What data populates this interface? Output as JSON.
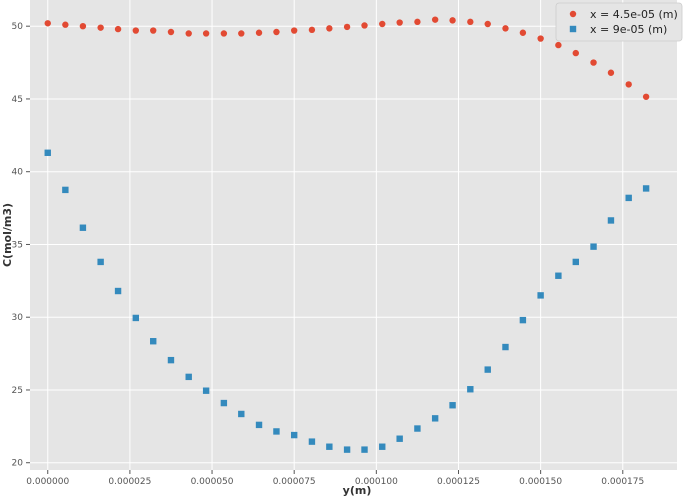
{
  "chart_data": {
    "type": "scatter",
    "title": "",
    "xlabel": "y(m)",
    "ylabel": "C(mol/m3)",
    "xlim": [
      -5.4e-06,
      0.0001915
    ],
    "ylim": [
      19.5,
      51.8
    ],
    "grid": true,
    "legend_position": "top-right",
    "x_ticks": [
      0,
      2.5e-05,
      5e-05,
      7.5e-05,
      0.0001,
      0.000125,
      0.00015,
      0.000175
    ],
    "x_tick_labels": [
      "0.000000",
      "0.000025",
      "0.000050",
      "0.000075",
      "0.000100",
      "0.000125",
      "0.000150",
      "0.000175"
    ],
    "y_ticks": [
      20,
      25,
      30,
      35,
      40,
      45,
      50
    ],
    "y_tick_labels": [
      "20",
      "25",
      "30",
      "35",
      "40",
      "45",
      "50"
    ],
    "x": [
      0,
      5.36e-06,
      1.07e-05,
      1.61e-05,
      2.14e-05,
      2.68e-05,
      3.21e-05,
      3.75e-05,
      4.29e-05,
      4.82e-05,
      5.36e-05,
      5.89e-05,
      6.43e-05,
      6.96e-05,
      7.5e-05,
      8.04e-05,
      8.57e-05,
      9.11e-05,
      9.64e-05,
      0.0001018,
      0.0001071,
      0.0001125,
      0.0001179,
      0.0001232,
      0.0001286,
      0.0001339,
      0.0001393,
      0.0001446,
      0.00015,
      0.0001554,
      0.0001607,
      0.0001661,
      0.0001714,
      0.0001768,
      0.0001821
    ],
    "series": [
      {
        "name": "x = 4.5e-05 (m)",
        "marker": "circle",
        "color": "#E24A33",
        "values": [
          50.2,
          50.1,
          50.0,
          49.9,
          49.8,
          49.7,
          49.7,
          49.6,
          49.5,
          49.5,
          49.5,
          49.5,
          49.55,
          49.6,
          49.7,
          49.75,
          49.85,
          49.95,
          50.05,
          50.15,
          50.25,
          50.3,
          50.45,
          50.4,
          50.3,
          50.15,
          49.85,
          49.55,
          49.15,
          48.7,
          48.15,
          47.5,
          46.8,
          46.0,
          45.15
        ]
      },
      {
        "name": "x = 9e-05 (m)",
        "marker": "square",
        "color": "#348ABD",
        "values": [
          41.3,
          38.75,
          36.15,
          33.8,
          31.8,
          29.95,
          28.35,
          27.05,
          25.9,
          24.95,
          24.1,
          23.35,
          22.6,
          22.15,
          21.9,
          21.45,
          21.1,
          20.9,
          20.9,
          21.1,
          21.65,
          22.35,
          23.05,
          23.95,
          25.05,
          26.4,
          27.95,
          29.8,
          31.5,
          32.85,
          33.8,
          34.85,
          36.65,
          38.2,
          38.85
        ]
      }
    ]
  }
}
